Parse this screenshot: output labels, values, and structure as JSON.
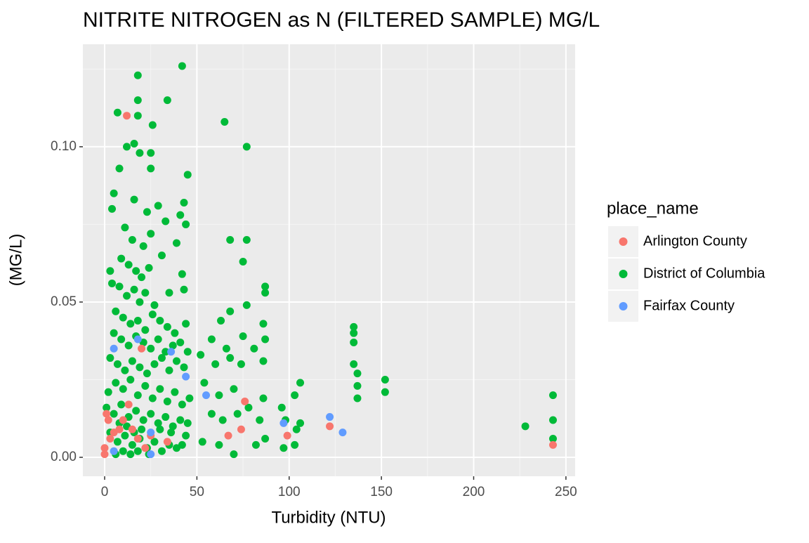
{
  "chart_data": {
    "type": "scatter",
    "title": "NITRITE NITROGEN as N (FILTERED SAMPLE) MG/L",
    "x_label": "Turbidity (NTU)",
    "y_label": "(MG/L)",
    "legend_title": "place_name",
    "legend_position": "right",
    "grid": true,
    "xlim": [
      -11.8,
      255
    ],
    "ylim": [
      -0.0061,
      0.133
    ],
    "xticks": [
      0,
      50,
      100,
      150,
      200,
      250
    ],
    "yticks": [
      {
        "value": 0,
        "label": "0.00"
      },
      {
        "value": 0.05,
        "label": "0.05"
      },
      {
        "value": 0.1,
        "label": "0.10"
      }
    ],
    "series": [
      {
        "name": "Arlington County",
        "color": "#F8766D",
        "x": [
          12,
          20,
          0,
          0,
          1,
          2,
          5,
          8,
          10,
          13,
          15,
          18,
          22,
          25,
          34,
          67,
          74,
          76,
          99,
          122,
          243,
          3
        ],
        "y": [
          0.11,
          0.035,
          0.001,
          0.003,
          0.014,
          0.012,
          0.008,
          0.009,
          0.012,
          0.017,
          0.009,
          0.006,
          0.003,
          0.007,
          0.005,
          0.007,
          0.009,
          0.018,
          0.007,
          0.01,
          0.004,
          0.006
        ]
      },
      {
        "name": "District of Columbia",
        "color": "#00BA38",
        "x": [
          5,
          7,
          12,
          18,
          18,
          18,
          26,
          34,
          42,
          65,
          77,
          8,
          16,
          19,
          25,
          25,
          45,
          4,
          16,
          23,
          29,
          33,
          41,
          43,
          44,
          11,
          15,
          21,
          25,
          39,
          68,
          77,
          75,
          3,
          9,
          13,
          17,
          20,
          24,
          31,
          42,
          4,
          8,
          12,
          16,
          19,
          22,
          27,
          35,
          43,
          87,
          87,
          77,
          68,
          6,
          10,
          14,
          18,
          22,
          26,
          30,
          34,
          38,
          44,
          63,
          86,
          5,
          9,
          13,
          17,
          21,
          25,
          29,
          33,
          37,
          41,
          45,
          58,
          66,
          75,
          81,
          87,
          135,
          135,
          135,
          3,
          7,
          11,
          15,
          19,
          23,
          27,
          31,
          35,
          39,
          43,
          52,
          60,
          68,
          74,
          86,
          106,
          135,
          137,
          137,
          152,
          152,
          137,
          2,
          6,
          10,
          14,
          18,
          22,
          26,
          30,
          34,
          38,
          42,
          46,
          54,
          62,
          70,
          78,
          86,
          96,
          103,
          1,
          5,
          9,
          13,
          17,
          21,
          25,
          29,
          33,
          37,
          41,
          45,
          58,
          64,
          72,
          84,
          98,
          106,
          104,
          228,
          243,
          243,
          243,
          3,
          7,
          11,
          15,
          19,
          23,
          27,
          31,
          35,
          39,
          6,
          10,
          14,
          18,
          24,
          42,
          53,
          62,
          70,
          82,
          87,
          97,
          103,
          44,
          20,
          16,
          12,
          8,
          30,
          36
        ],
        "y": [
          0.085,
          0.111,
          0.1,
          0.123,
          0.115,
          0.11,
          0.107,
          0.115,
          0.126,
          0.108,
          0.1,
          0.093,
          0.101,
          0.098,
          0.098,
          0.093,
          0.091,
          0.08,
          0.083,
          0.079,
          0.081,
          0.076,
          0.078,
          0.082,
          0.075,
          0.074,
          0.07,
          0.068,
          0.072,
          0.069,
          0.07,
          0.07,
          0.063,
          0.06,
          0.064,
          0.062,
          0.06,
          0.058,
          0.061,
          0.065,
          0.059,
          0.056,
          0.055,
          0.052,
          0.054,
          0.05,
          0.053,
          0.049,
          0.053,
          0.054,
          0.055,
          0.053,
          0.049,
          0.047,
          0.047,
          0.045,
          0.043,
          0.044,
          0.041,
          0.046,
          0.044,
          0.042,
          0.04,
          0.043,
          0.044,
          0.043,
          0.04,
          0.038,
          0.036,
          0.039,
          0.037,
          0.035,
          0.038,
          0.034,
          0.036,
          0.037,
          0.034,
          0.038,
          0.035,
          0.039,
          0.035,
          0.038,
          0.042,
          0.04,
          0.037,
          0.032,
          0.03,
          0.028,
          0.031,
          0.029,
          0.027,
          0.03,
          0.032,
          0.028,
          0.031,
          0.029,
          0.033,
          0.03,
          0.032,
          0.03,
          0.031,
          0.024,
          0.03,
          0.027,
          0.023,
          0.025,
          0.021,
          0.019,
          0.021,
          0.024,
          0.022,
          0.025,
          0.02,
          0.023,
          0.019,
          0.022,
          0.018,
          0.021,
          0.017,
          0.019,
          0.024,
          0.02,
          0.022,
          0.016,
          0.019,
          0.016,
          0.02,
          0.016,
          0.014,
          0.017,
          0.013,
          0.015,
          0.012,
          0.014,
          0.011,
          0.013,
          0.01,
          0.012,
          0.011,
          0.014,
          0.012,
          0.014,
          0.012,
          0.012,
          0.011,
          0.009,
          0.01,
          0.02,
          0.012,
          0.006,
          0.008,
          0.005,
          0.007,
          0.004,
          0.006,
          0.003,
          0.005,
          0.002,
          0.004,
          0.003,
          0.001,
          0.002,
          0.001,
          0.002,
          0.001,
          0.004,
          0.005,
          0.004,
          0.001,
          0.004,
          0.006,
          0.003,
          0.004,
          0.007,
          0.009,
          0.008,
          0.01,
          0.011,
          0.009,
          0.008
        ]
      },
      {
        "name": "Fairfax County",
        "color": "#619CFF",
        "x": [
          5,
          5,
          25,
          25,
          36,
          44,
          55,
          97,
          122,
          129,
          18
        ],
        "y": [
          0.035,
          0.002,
          0.008,
          0.001,
          0.034,
          0.026,
          0.02,
          0.011,
          0.013,
          0.008,
          0.038
        ]
      }
    ]
  }
}
